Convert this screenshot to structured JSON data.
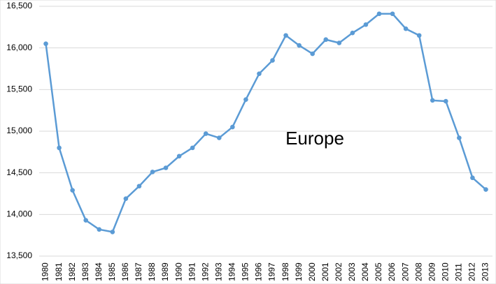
{
  "chart_data": {
    "type": "line",
    "annotation": "Europe",
    "categories": [
      "1980",
      "1981",
      "1982",
      "1983",
      "1984",
      "1985",
      "1986",
      "1987",
      "1988",
      "1989",
      "1990",
      "1991",
      "1992",
      "1993",
      "1994",
      "1995",
      "1996",
      "1997",
      "1998",
      "1999",
      "2000",
      "2001",
      "2002",
      "2003",
      "2004",
      "2005",
      "2006",
      "2007",
      "2008",
      "2009",
      "2010",
      "2011",
      "2012",
      "2013"
    ],
    "series": [
      {
        "color": "#5b9bd5",
        "values": [
          16050,
          14800,
          14290,
          13930,
          13820,
          13790,
          14190,
          14340,
          14510,
          14560,
          14700,
          14800,
          14970,
          14920,
          15050,
          15380,
          15690,
          15850,
          16150,
          16030,
          15930,
          16100,
          16060,
          16180,
          16280,
          16410,
          16410,
          16230,
          16150,
          15370,
          15360,
          14920,
          14440,
          14300
        ]
      }
    ],
    "ylim": [
      13500,
      16500
    ],
    "yticks": [
      {
        "value": 13500,
        "label": "13,500"
      },
      {
        "value": 14000,
        "label": "14,000"
      },
      {
        "value": 14500,
        "label": "14,500"
      },
      {
        "value": 15000,
        "label": "15,000"
      },
      {
        "value": 15500,
        "label": "15,500"
      },
      {
        "value": 16000,
        "label": "16,000"
      },
      {
        "value": 16500,
        "label": "16,500"
      }
    ],
    "grid": true
  }
}
